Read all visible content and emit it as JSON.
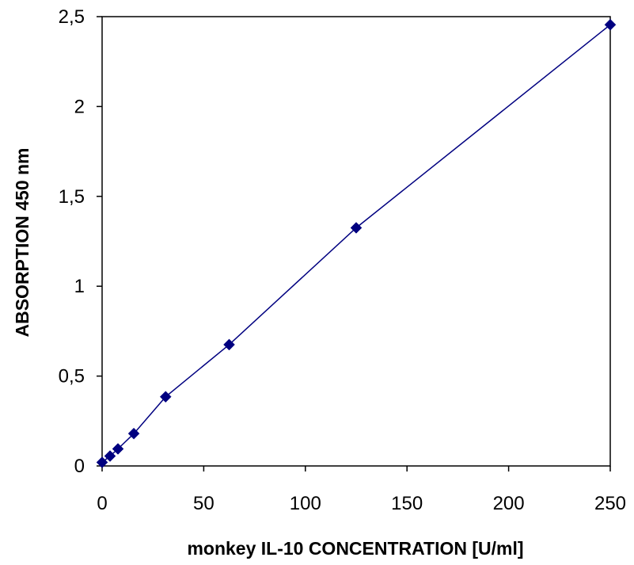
{
  "chart_data": {
    "type": "scatter",
    "title": "",
    "xlabel": "monkey IL-10 CONCENTRATION [U/ml]",
    "ylabel": "ABSORPTION 450 nm",
    "xlim": [
      0,
      250
    ],
    "ylim": [
      0,
      2.5
    ],
    "x_ticks": [
      0,
      50,
      100,
      150,
      200,
      250
    ],
    "x_tick_labels": [
      "0",
      "50",
      "100",
      "150",
      "200",
      "250"
    ],
    "y_ticks": [
      0,
      0.5,
      1,
      1.5,
      2,
      2.5
    ],
    "y_tick_labels": [
      "0",
      "0,5",
      "1",
      "1,5",
      "2",
      "2,5"
    ],
    "grid": false,
    "legend": "none",
    "marker": "diamond",
    "connected_with_line": true,
    "series": [
      {
        "x": [
          0,
          3.9,
          7.8,
          15.6,
          31.25,
          62.5,
          125,
          250
        ],
        "y": [
          0.02,
          0.055,
          0.095,
          0.18,
          0.385,
          0.675,
          1.325,
          2.455
        ],
        "color": "#000080"
      }
    ]
  }
}
